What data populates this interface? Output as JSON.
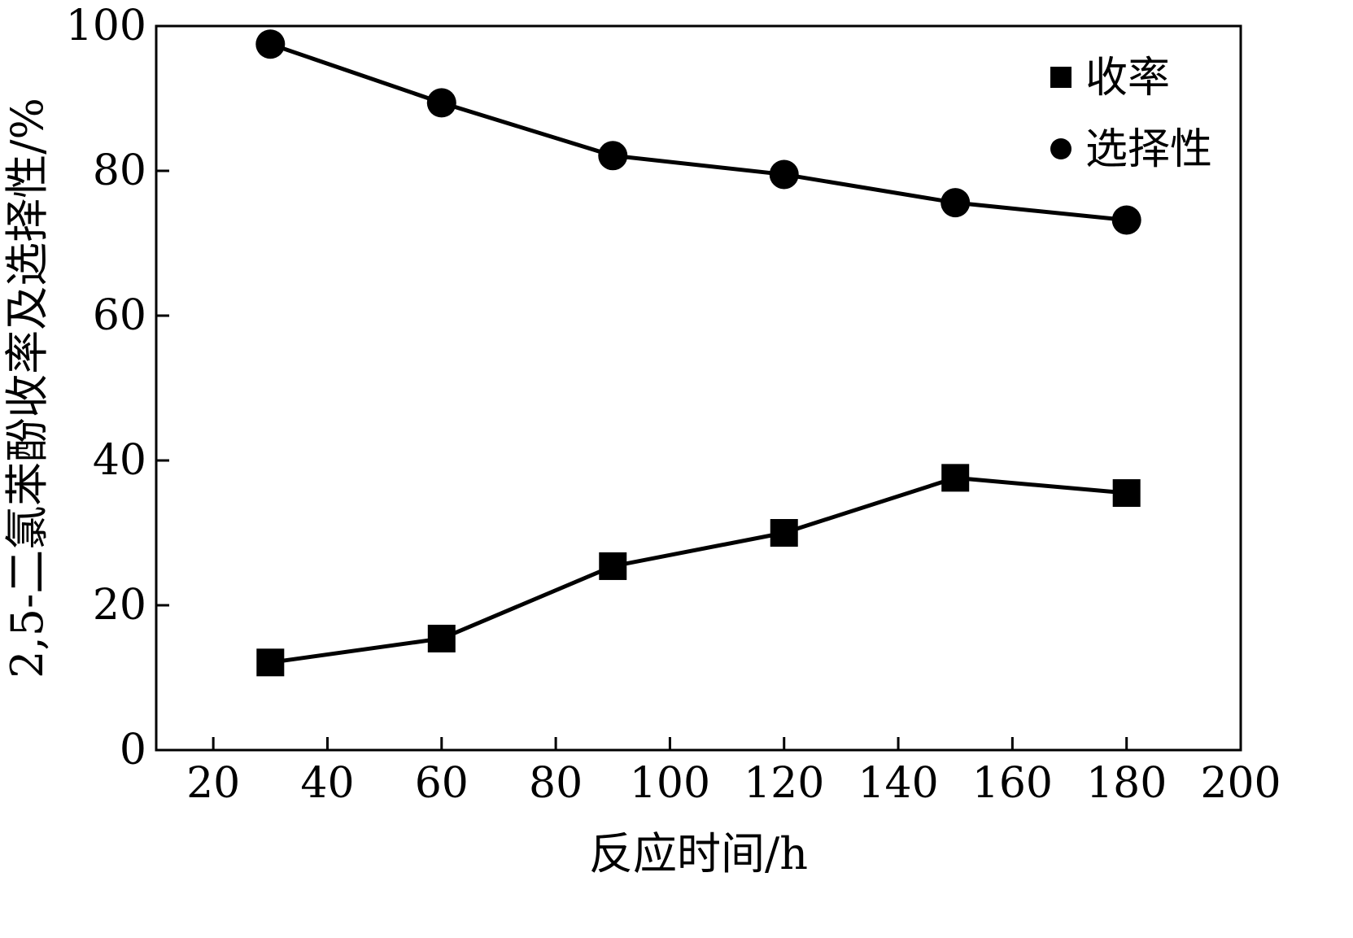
{
  "chart_data": {
    "type": "line",
    "xlabel": "反应时间/h",
    "ylabel": "2,5-二氯苯酚收率及选择性/%",
    "xlim": [
      10,
      200
    ],
    "ylim": [
      0,
      100
    ],
    "xticks": [
      20,
      40,
      60,
      80,
      100,
      120,
      140,
      160,
      180,
      200
    ],
    "yticks": [
      0,
      20,
      40,
      60,
      80,
      100
    ],
    "grid": false,
    "legend_position": "top-right",
    "series": [
      {
        "name": "收率",
        "marker": "square",
        "color": "#000000",
        "x": [
          30,
          60,
          90,
          120,
          150,
          180
        ],
        "y": [
          12.1,
          15.4,
          25.4,
          30.0,
          37.6,
          35.5
        ]
      },
      {
        "name": "选择性",
        "marker": "circle",
        "color": "#000000",
        "x": [
          30,
          60,
          90,
          120,
          150,
          180
        ],
        "y": [
          97.5,
          89.4,
          82.1,
          79.5,
          75.6,
          73.2
        ]
      }
    ]
  }
}
